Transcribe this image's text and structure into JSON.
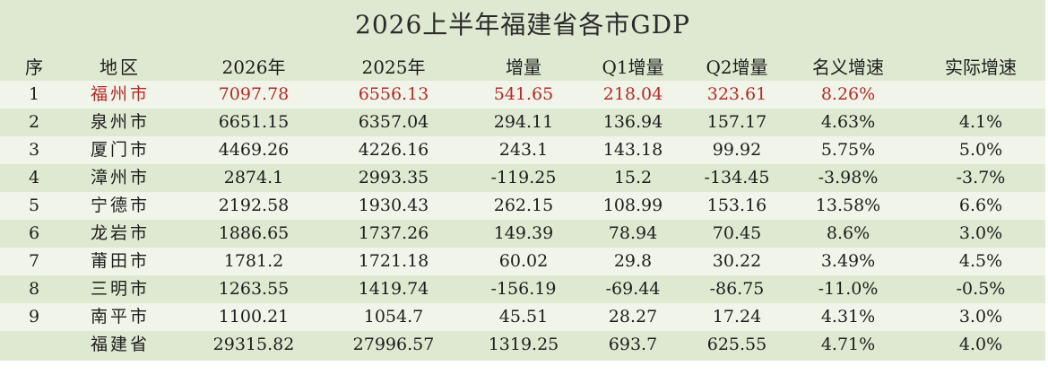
{
  "title": "2026上半年福建省各市GDP",
  "columns": [
    "序",
    "地区",
    "2026年",
    "2025年",
    "增量",
    "Q1增量",
    "Q2增量",
    "名义增速",
    "实际增速"
  ],
  "rows": [
    [
      "1",
      "福州市",
      "7097.78",
      "6556.13",
      "541.65",
      "218.04",
      "323.61",
      "8.26%",
      ""
    ],
    [
      "2",
      "泉州市",
      "6651.15",
      "6357.04",
      "294.11",
      "136.94",
      "157.17",
      "4.63%",
      "4.1%"
    ],
    [
      "3",
      "厦门市",
      "4469.26",
      "4226.16",
      "243.1",
      "143.18",
      "99.92",
      "5.75%",
      "5.0%"
    ],
    [
      "4",
      "漳州市",
      "2874.1",
      "2993.35",
      "-119.25",
      "15.2",
      "-134.45",
      "-3.98%",
      "-3.7%"
    ],
    [
      "5",
      "宁德市",
      "2192.58",
      "1930.43",
      "262.15",
      "108.99",
      "153.16",
      "13.58%",
      "6.6%"
    ],
    [
      "6",
      "龙岩市",
      "1886.65",
      "1737.26",
      "149.39",
      "78.94",
      "70.45",
      "8.6%",
      "3.0%"
    ],
    [
      "7",
      "莆田市",
      "1781.2",
      "1721.18",
      "60.02",
      "29.8",
      "30.22",
      "3.49%",
      "4.5%"
    ],
    [
      "8",
      "三明市",
      "1263.55",
      "1419.74",
      "-156.19",
      "-69.44",
      "-86.75",
      "-11.0%",
      "-0.5%"
    ],
    [
      "9",
      "南平市",
      "1100.21",
      "1054.7",
      "45.51",
      "28.27",
      "17.24",
      "4.31%",
      "3.0%"
    ],
    [
      "",
      "福建省",
      "29315.82",
      "27996.57",
      "1319.25",
      "693.7",
      "625.55",
      "4.71%",
      "4.0%"
    ]
  ],
  "colors": {
    "background": "#dfe8d0",
    "row_alt": "#f1f5e9",
    "highlight_text": "#b42a2a"
  }
}
